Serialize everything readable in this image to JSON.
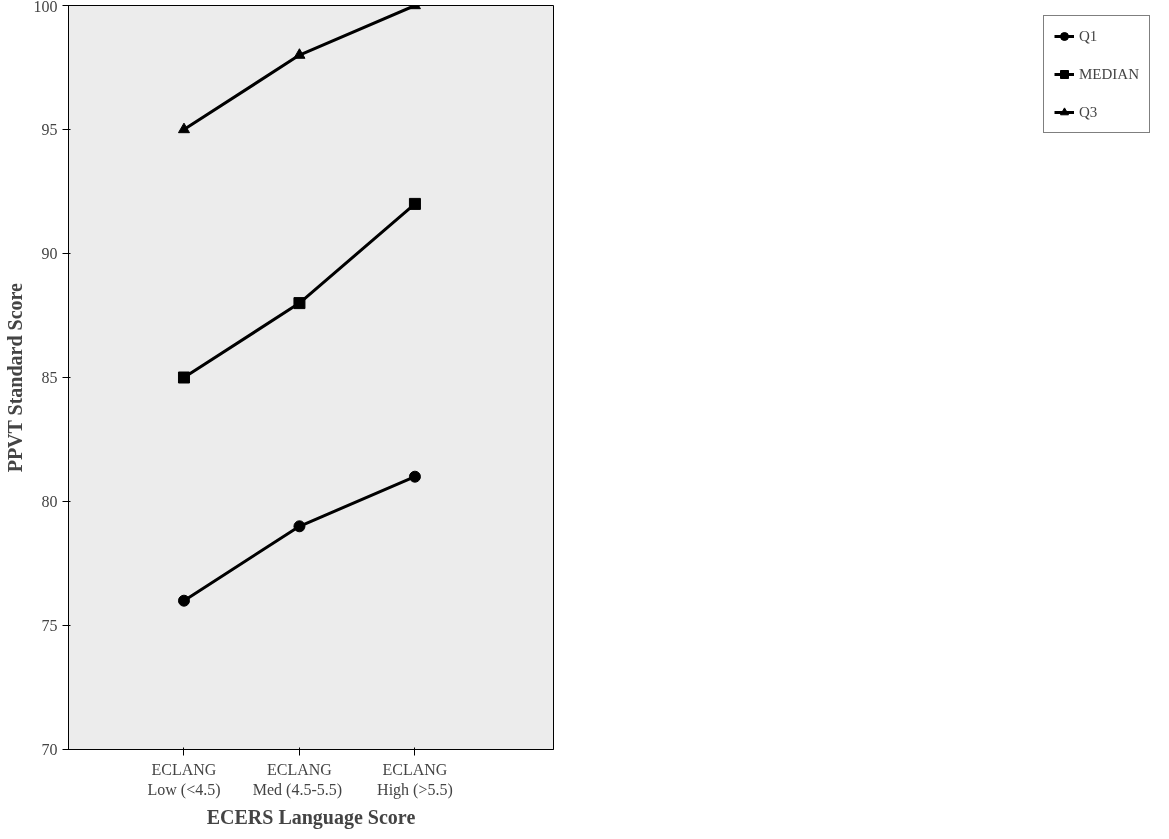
{
  "chart_data": {
    "type": "line",
    "xlabel": "ECERS Language Score",
    "ylabel": "PPVT Standard Score",
    "categories": [
      "ECLANG\nLow (<4.5)",
      "ECLANG\nMed  (4.5-5.5)",
      "ECLANG\nHigh (>5.5)"
    ],
    "series": [
      {
        "name": "Q1",
        "color": "#000000",
        "marker": "circle",
        "values": [
          76,
          79,
          81
        ]
      },
      {
        "name": "MEDIAN",
        "color": "#000000",
        "marker": "square",
        "values": [
          85,
          88,
          92
        ]
      },
      {
        "name": "Q3",
        "color": "#000000",
        "marker": "triangle",
        "values": [
          95,
          98,
          100
        ]
      }
    ],
    "ylim": [
      70,
      100
    ],
    "yticks": [
      70,
      75,
      80,
      85,
      90,
      95,
      100
    ],
    "grid": false,
    "legend": "right",
    "line_style": "solid"
  }
}
